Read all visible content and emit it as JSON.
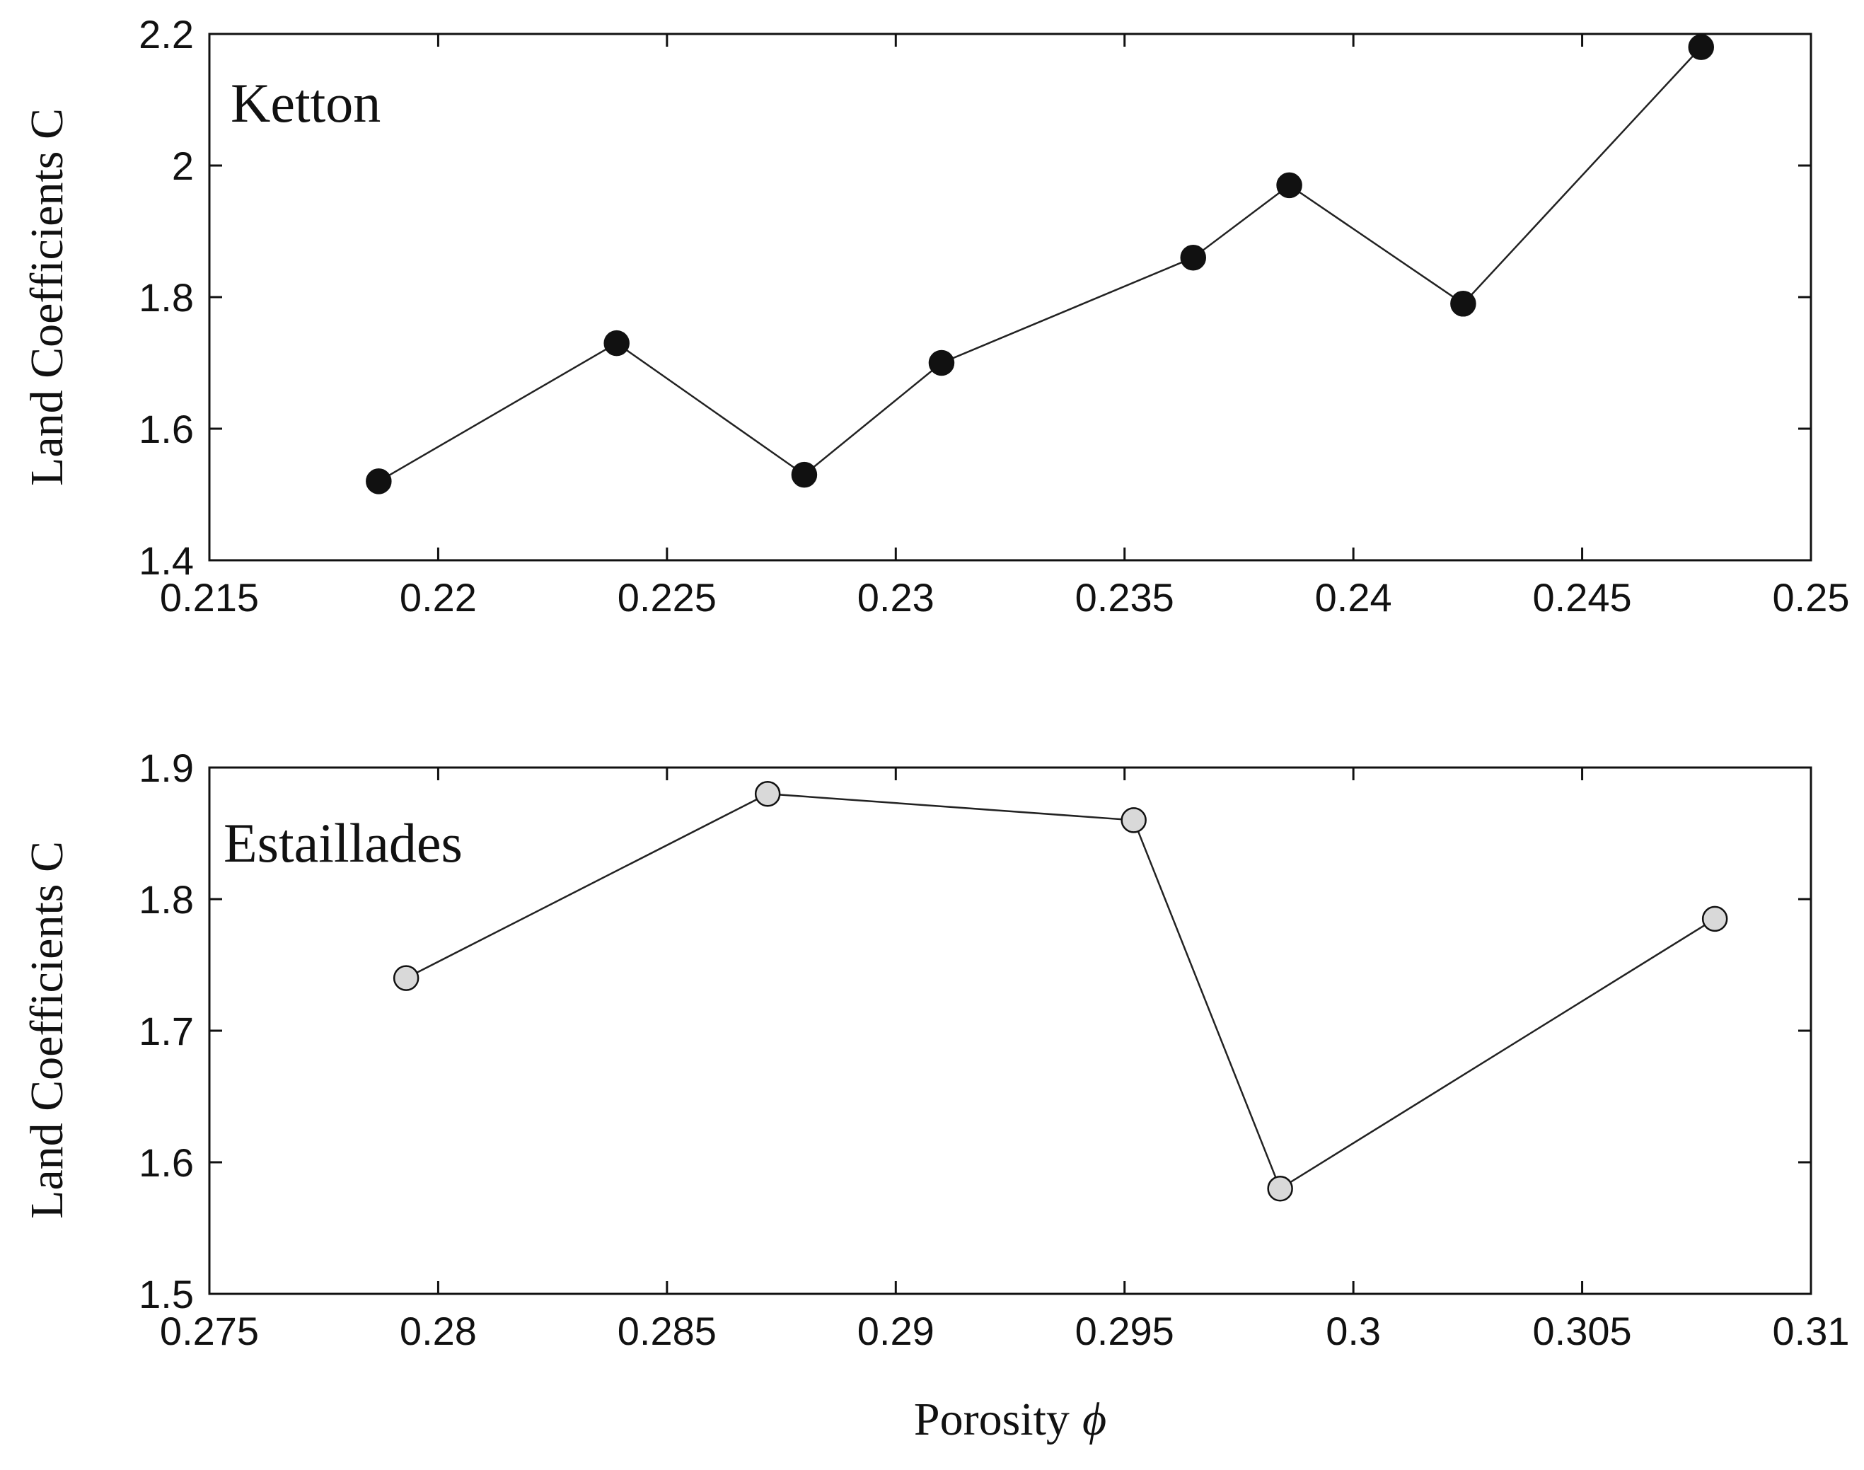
{
  "chart_data": [
    {
      "type": "line",
      "panel_label": "Ketton",
      "title": "",
      "xlabel": "",
      "ylabel": "Land Coefficients C",
      "xlim": [
        0.215,
        0.25
      ],
      "ylim": [
        1.4,
        2.2
      ],
      "x_ticks": [
        0.215,
        0.22,
        0.225,
        0.23,
        0.235,
        0.24,
        0.245,
        0.25
      ],
      "x_tick_labels": [
        "0.215",
        "0.22",
        "0.225",
        "0.23",
        "0.235",
        "0.24",
        "0.245",
        "0.25"
      ],
      "y_ticks": [
        1.4,
        1.6,
        1.8,
        2.0,
        2.2
      ],
      "y_tick_labels": [
        "1.4",
        "1.6",
        "1.8",
        "2",
        "2.2"
      ],
      "grid": false,
      "marker_fill": "#111111",
      "series": [
        {
          "x": [
            0.2187,
            0.2239,
            0.228,
            0.231,
            0.2365,
            0.2386,
            0.2424,
            0.2476
          ],
          "y": [
            1.52,
            1.73,
            1.53,
            1.7,
            1.86,
            1.97,
            1.79,
            2.18
          ]
        }
      ]
    },
    {
      "type": "line",
      "panel_label": "Estaillades",
      "title": "",
      "xlabel": "Porosity",
      "xlabel_symbol": "ϕ",
      "ylabel": "Land Coefficients C",
      "xlim": [
        0.275,
        0.31
      ],
      "ylim": [
        1.5,
        1.9
      ],
      "x_ticks": [
        0.275,
        0.28,
        0.285,
        0.29,
        0.295,
        0.3,
        0.305,
        0.31
      ],
      "x_tick_labels": [
        "0.275",
        "0.28",
        "0.285",
        "0.29",
        "0.295",
        "0.3",
        "0.305",
        "0.31"
      ],
      "y_ticks": [
        1.5,
        1.6,
        1.7,
        1.8,
        1.9
      ],
      "y_tick_labels": [
        "1.5",
        "1.6",
        "1.7",
        "1.8",
        "1.9"
      ],
      "grid": false,
      "marker_fill": "#d9d9d9",
      "series": [
        {
          "x": [
            0.2793,
            0.2872,
            0.2952,
            0.2984,
            0.3079
          ],
          "y": [
            1.74,
            1.88,
            1.86,
            1.58,
            1.785
          ]
        }
      ]
    }
  ]
}
